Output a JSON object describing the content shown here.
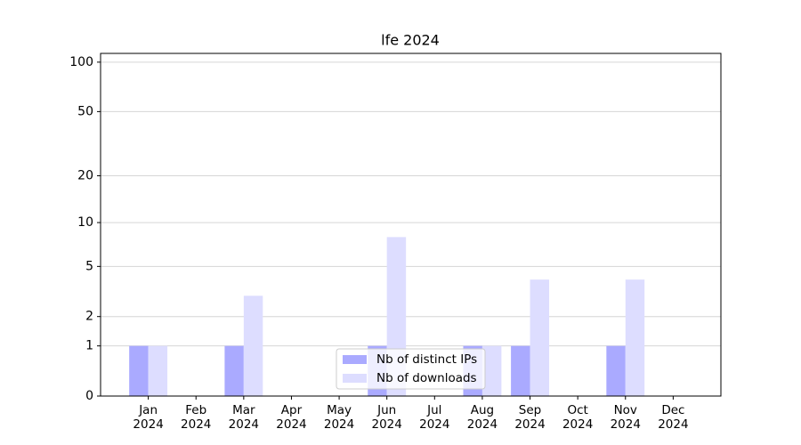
{
  "chart_data": {
    "type": "bar",
    "title": "lfe 2024",
    "categories": [
      "Jan\n2024",
      "Feb\n2024",
      "Mar\n2024",
      "Apr\n2024",
      "May\n2024",
      "Jun\n2024",
      "Jul\n2024",
      "Aug\n2024",
      "Sep\n2024",
      "Oct\n2024",
      "Nov\n2024",
      "Dec\n2024"
    ],
    "series": [
      {
        "name": "Nb of distinct IPs",
        "color": "#aaaaff",
        "values": [
          1,
          0,
          1,
          0,
          0,
          1,
          0,
          1,
          1,
          0,
          1,
          0
        ]
      },
      {
        "name": "Nb of downloads",
        "color": "#ddddff",
        "values": [
          1,
          0,
          3,
          0,
          0,
          8,
          0,
          1,
          4,
          0,
          4,
          0
        ]
      }
    ],
    "yscale": "symlog",
    "ylim": [
      0,
      113
    ],
    "yticks": [
      0,
      1,
      2,
      5,
      10,
      20,
      50,
      100
    ],
    "grid": true,
    "legend": "lower center"
  }
}
